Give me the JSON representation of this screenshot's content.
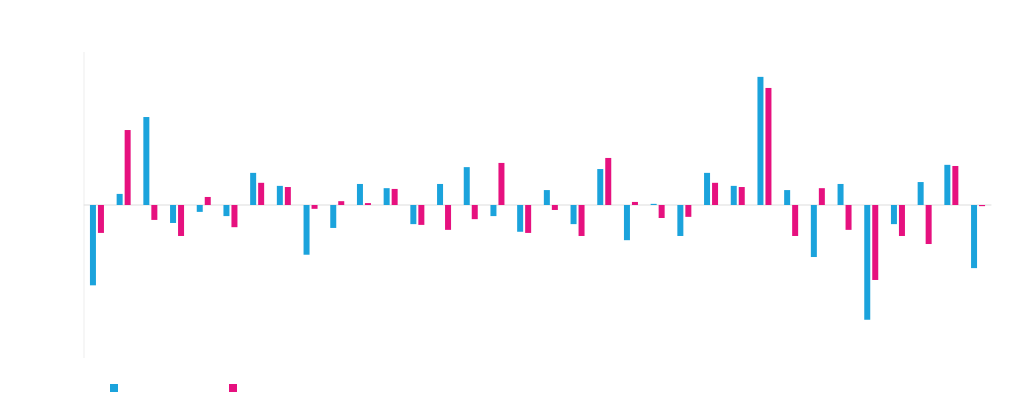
{
  "chart_data": {
    "type": "bar",
    "categories": [
      null,
      null,
      null,
      null,
      null,
      null,
      null,
      null,
      null,
      null,
      null,
      null,
      null,
      null,
      null,
      null,
      null,
      null,
      null,
      null,
      null,
      null,
      null,
      null,
      null,
      null,
      null,
      null,
      null,
      null,
      null,
      null,
      null,
      null
    ],
    "series": [
      {
        "color": "#1ba3dc",
        "values": [
          -21,
          2.9,
          23,
          -4.7,
          -1.8,
          -2.9,
          8.4,
          5,
          -13,
          -6,
          5.5,
          4.4,
          -5,
          5.5,
          9.9,
          -2.9,
          -7,
          3.9,
          -5,
          9.4,
          -9.2,
          0.3,
          -8.1,
          8.4,
          5,
          33.5,
          3.9,
          -13.6,
          5.5,
          -30,
          -5,
          6,
          10.5,
          -16.5
        ]
      },
      {
        "color": "#e6117f",
        "values": [
          -7.3,
          19.6,
          -3.9,
          -8.1,
          2.1,
          -5.8,
          5.8,
          4.7,
          -1,
          1,
          0.5,
          4.2,
          -5.2,
          -6.5,
          -3.7,
          11,
          -7.3,
          -1.3,
          -8.1,
          12.3,
          0.8,
          -3.4,
          -3.1,
          5.8,
          4.7,
          30.6,
          -8.1,
          4.4,
          -6.5,
          -19.6,
          -8.1,
          -10.2,
          10.2,
          -0.3
        ]
      }
    ],
    "ylim": [
      -40,
      40
    ]
  }
}
